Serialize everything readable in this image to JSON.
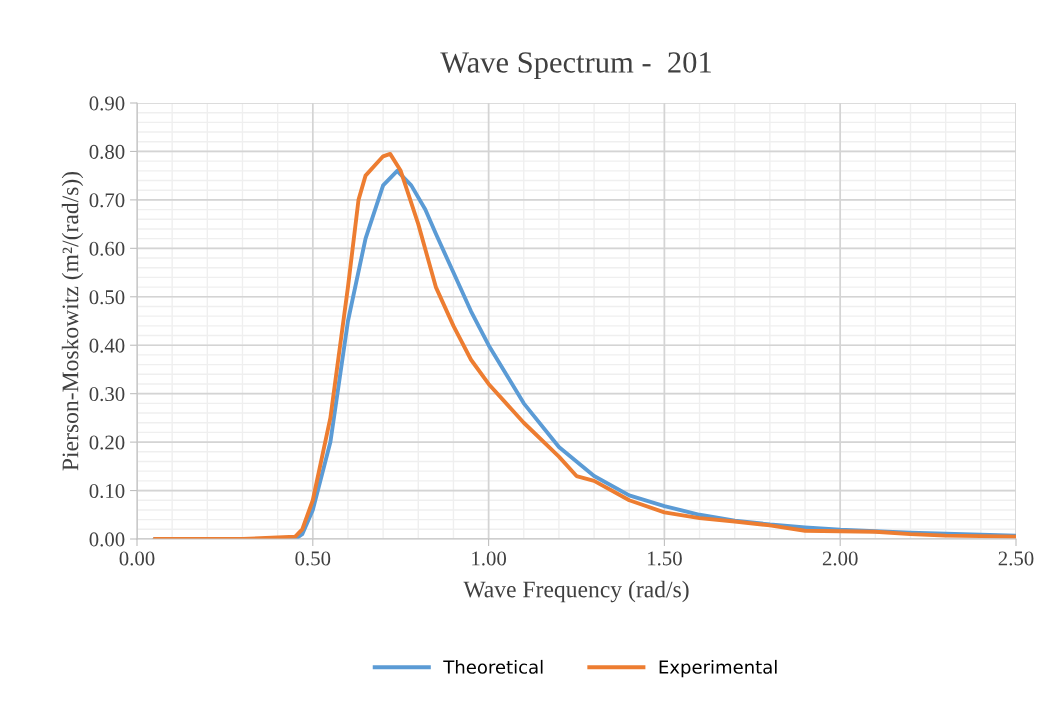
{
  "chart_data": {
    "type": "line",
    "title": "Wave Spectrum -  201",
    "xlabel": "Wave Frequency (rad/s)",
    "ylabel": "Pierson-Moskowitz (m²/(rad/s))",
    "xlim": [
      0,
      2.5
    ],
    "xticks": [
      {
        "value": 0,
        "label": "0.00"
      },
      {
        "value": 0.5,
        "label": "0.50"
      },
      {
        "value": 1,
        "label": "1.00"
      },
      {
        "value": 1.5,
        "label": "1.50"
      },
      {
        "value": 2,
        "label": "2.00"
      },
      {
        "value": 2.5,
        "label": "2.50"
      }
    ],
    "ylim": [
      0,
      0.9
    ],
    "yticks": [
      {
        "value": 0,
        "label": "0.00"
      },
      {
        "value": 0.1,
        "label": "0.10"
      },
      {
        "value": 0.2,
        "label": "0.20"
      },
      {
        "value": 0.3,
        "label": "0.30"
      },
      {
        "value": 0.4,
        "label": "0.40"
      },
      {
        "value": 0.5,
        "label": "0.50"
      },
      {
        "value": 0.6,
        "label": "0.60"
      },
      {
        "value": 0.7,
        "label": "0.70"
      },
      {
        "value": 0.8,
        "label": "0.80"
      },
      {
        "value": 0.9,
        "label": "0.90"
      }
    ],
    "grid": true,
    "legend": "bottom",
    "marker": "none",
    "line_style": "solid",
    "series": [
      {
        "name": "Theoretical",
        "color": "#5b9bd5",
        "x": [
          0.05,
          0.3,
          0.45,
          0.47,
          0.5,
          0.55,
          0.6,
          0.65,
          0.7,
          0.74,
          0.78,
          0.82,
          0.85,
          0.9,
          0.95,
          1.0,
          1.05,
          1.1,
          1.2,
          1.3,
          1.4,
          1.5,
          1.6,
          1.7,
          1.8,
          1.9,
          2.0,
          2.2,
          2.5
        ],
        "values": [
          0,
          0,
          0,
          0.01,
          0.06,
          0.2,
          0.45,
          0.62,
          0.73,
          0.76,
          0.73,
          0.68,
          0.63,
          0.55,
          0.47,
          0.4,
          0.34,
          0.28,
          0.19,
          0.13,
          0.09,
          0.068,
          0.05,
          0.038,
          0.03,
          0.024,
          0.019,
          0.013,
          0.007
        ]
      },
      {
        "name": "Experimental",
        "color": "#ed7d31",
        "x": [
          0.05,
          0.3,
          0.45,
          0.47,
          0.5,
          0.55,
          0.6,
          0.63,
          0.65,
          0.7,
          0.72,
          0.75,
          0.8,
          0.85,
          0.9,
          0.95,
          1.0,
          1.05,
          1.1,
          1.2,
          1.25,
          1.3,
          1.35,
          1.4,
          1.5,
          1.6,
          1.7,
          1.8,
          1.9,
          2.0,
          2.1,
          2.2,
          2.3,
          2.5
        ],
        "values": [
          0,
          0,
          0.005,
          0.02,
          0.08,
          0.25,
          0.52,
          0.7,
          0.75,
          0.79,
          0.795,
          0.76,
          0.65,
          0.52,
          0.44,
          0.37,
          0.32,
          0.28,
          0.24,
          0.17,
          0.13,
          0.12,
          0.1,
          0.08,
          0.055,
          0.043,
          0.036,
          0.028,
          0.017,
          0.016,
          0.015,
          0.01,
          0.007,
          0.005
        ]
      }
    ]
  }
}
